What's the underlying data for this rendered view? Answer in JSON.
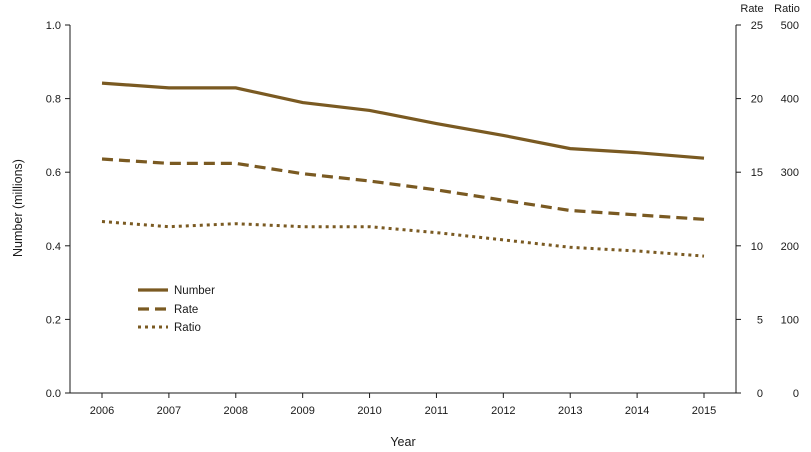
{
  "chart_data": {
    "type": "line",
    "x": [
      2006,
      2007,
      2008,
      2009,
      2010,
      2011,
      2012,
      2013,
      2014,
      2015
    ],
    "xlabel": "Year",
    "ylabel": "Number (millions)",
    "ylim": [
      0,
      1.0
    ],
    "yticks": [
      "0.0",
      "0.2",
      "0.4",
      "0.6",
      "0.8",
      "1.0"
    ],
    "right_axes": [
      {
        "label": "Rate",
        "ylim": [
          0,
          25
        ],
        "ticks": [
          "0",
          "5",
          "10",
          "15",
          "20",
          "25"
        ]
      },
      {
        "label": "Ratio",
        "ylim": [
          0,
          500
        ],
        "ticks": [
          "0",
          "100",
          "200",
          "300",
          "400",
          "500"
        ]
      }
    ],
    "series": [
      {
        "name": "Number",
        "axis": "left",
        "style": "solid",
        "color": "#7a5a22",
        "values": [
          0.842,
          0.829,
          0.829,
          0.789,
          0.768,
          0.732,
          0.7,
          0.664,
          0.653,
          0.638
        ]
      },
      {
        "name": "Rate",
        "axis": "rate",
        "style": "dashed",
        "color": "#7a5a22",
        "values": [
          15.9,
          15.6,
          15.6,
          14.9,
          14.4,
          13.8,
          13.1,
          12.4,
          12.1,
          11.8
        ]
      },
      {
        "name": "Ratio",
        "axis": "ratio",
        "style": "dotted",
        "color": "#7a5a22",
        "values": [
          233,
          226,
          230,
          226,
          226,
          218,
          208,
          198,
          193,
          186
        ]
      }
    ],
    "legend": "left-middle",
    "grid": false
  }
}
